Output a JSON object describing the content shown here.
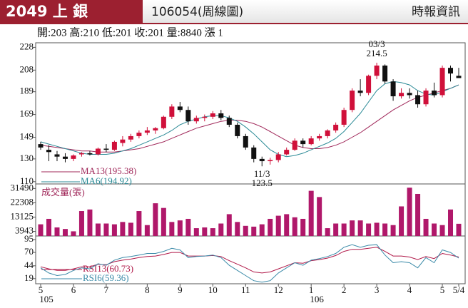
{
  "header": {
    "title": "2049 上 銀",
    "code": "106054(周線圖)",
    "source": "時報資訊",
    "info": "開:203 高:210 低:201 收:201 量:8840 漲 1"
  },
  "chart_data": [
    {
      "type": "candlestick",
      "categories": [
        "5",
        null,
        null,
        null,
        "6",
        null,
        null,
        null,
        "7",
        null,
        null,
        null,
        null,
        "8",
        null,
        null,
        null,
        "9",
        null,
        null,
        null,
        "10",
        null,
        null,
        null,
        "11",
        null,
        null,
        null,
        "12",
        null,
        null,
        null,
        "1",
        null,
        null,
        null,
        "2",
        null,
        null,
        null,
        "3",
        null,
        null,
        null,
        "4",
        null,
        null,
        null,
        "5",
        null,
        "5/4"
      ],
      "years": [
        "105",
        null,
        null,
        null,
        null,
        null,
        null,
        null,
        null,
        null,
        null,
        null,
        null,
        null,
        null,
        null,
        null,
        null,
        null,
        null,
        null,
        null,
        null,
        null,
        null,
        null,
        null,
        null,
        null,
        null,
        null,
        null,
        null,
        "106",
        null,
        null,
        null,
        null,
        null,
        null,
        null,
        null,
        null,
        null,
        null,
        null,
        null,
        null,
        null,
        null,
        null,
        null
      ],
      "open": [
        143,
        138,
        134,
        132,
        130,
        134,
        135,
        134,
        139,
        138,
        144,
        147,
        150,
        153,
        155,
        157,
        167,
        176,
        173,
        163,
        166,
        167,
        170,
        166,
        160,
        150,
        140,
        130,
        128,
        129,
        134,
        138,
        146,
        143,
        148,
        150,
        155,
        160,
        173,
        190,
        188,
        203,
        212,
        198,
        185,
        188,
        186,
        178,
        190,
        186,
        210,
        203
      ],
      "high": [
        145,
        142,
        137,
        135,
        134,
        136,
        137,
        140,
        143,
        146,
        150,
        152,
        155,
        158,
        158,
        168,
        178,
        180,
        176,
        168,
        169,
        172,
        173,
        168,
        162,
        152,
        142,
        132,
        131,
        136,
        140,
        148,
        148,
        150,
        152,
        156,
        162,
        175,
        192,
        200,
        204,
        214.5,
        213,
        200,
        192,
        192,
        190,
        192,
        197,
        212,
        212,
        210
      ],
      "low": [
        138,
        128,
        128,
        127,
        128,
        132,
        133,
        133,
        136,
        137,
        141,
        145,
        148,
        151,
        152,
        156,
        165,
        171,
        160,
        161,
        163,
        165,
        164,
        158,
        148,
        138,
        127,
        123.5,
        125,
        127,
        133,
        137,
        140,
        142,
        146,
        148,
        153,
        158,
        171,
        185,
        186,
        200,
        196,
        181,
        183,
        183,
        175,
        176,
        184,
        184,
        198,
        201
      ],
      "close": [
        140,
        136,
        132,
        130,
        133,
        135,
        134,
        139,
        138,
        145,
        147,
        150,
        153,
        155,
        157,
        167,
        176,
        173,
        163,
        166,
        167,
        170,
        166,
        160,
        150,
        140,
        130,
        128,
        129,
        134,
        138,
        146,
        143,
        148,
        150,
        155,
        160,
        173,
        190,
        188,
        203,
        212,
        198,
        185,
        188,
        186,
        178,
        190,
        186,
        210,
        205,
        201
      ],
      "up_color": "#d0103a",
      "down_color": "#111111",
      "series": [
        {
          "name": "MA13(195.38)",
          "color": "#a0285a",
          "values": [
            142,
            141,
            140,
            139,
            138,
            137,
            137,
            136,
            136,
            136,
            137,
            138,
            139,
            141,
            143,
            145,
            148,
            151,
            154,
            157,
            159,
            161,
            163,
            164,
            164,
            163,
            161,
            158,
            154,
            150,
            146,
            142,
            140,
            139,
            139,
            140,
            142,
            145,
            149,
            153,
            158,
            163,
            168,
            173,
            177,
            181,
            184,
            186,
            188,
            190,
            192,
            195
          ]
        },
        {
          "name": "MA6(194.92)",
          "color": "#2a8a96",
          "values": [
            145,
            143,
            141,
            139,
            137,
            135,
            134,
            134,
            134,
            135,
            137,
            139,
            142,
            145,
            148,
            151,
            155,
            160,
            163,
            165,
            167,
            168,
            168,
            166,
            163,
            158,
            152,
            145,
            138,
            134,
            132,
            133,
            135,
            138,
            141,
            144,
            148,
            154,
            162,
            170,
            180,
            190,
            196,
            198,
            197,
            195,
            190,
            187,
            186,
            189,
            192,
            195
          ]
        }
      ],
      "annotations": [
        {
          "label": "03/3",
          "value": 214.5
        },
        {
          "label": "11/3",
          "value": 123.5
        }
      ],
      "ylim": [
        108,
        232
      ],
      "yticks": [
        228,
        208,
        189,
        169,
        149,
        130,
        110
      ]
    },
    {
      "type": "bar",
      "label": "成交量(張)",
      "color": "#b0186a",
      "values": [
        8500,
        12000,
        6500,
        5500,
        4000,
        17000,
        18000,
        9000,
        9000,
        8500,
        10000,
        9500,
        17000,
        8000,
        22000,
        19000,
        10000,
        11000,
        12000,
        6000,
        6500,
        6000,
        9000,
        15000,
        10000,
        7500,
        7000,
        8500,
        12000,
        14000,
        15000,
        13000,
        12000,
        30000,
        26000,
        6000,
        9000,
        9000,
        11000,
        11000,
        9000,
        9500,
        9000,
        8000,
        20000,
        32000,
        28000,
        12000,
        9000,
        8000,
        18000,
        8840
      ],
      "ylim": [
        1000,
        34400
      ],
      "yticks": [
        31490,
        22308,
        13125,
        3943
      ]
    },
    {
      "type": "line",
      "series": [
        {
          "name": "RSI13(60.73)",
          "color": "#b01848",
          "values": [
            42,
            38,
            35,
            35,
            38,
            42,
            42,
            47,
            46,
            52,
            55,
            57,
            60,
            62,
            63,
            66,
            70,
            70,
            63,
            63,
            63,
            64,
            62,
            54,
            47,
            40,
            32,
            30,
            32,
            38,
            44,
            50,
            49,
            54,
            56,
            59,
            64,
            72,
            76,
            76,
            78,
            80,
            72,
            63,
            63,
            61,
            56,
            62,
            58,
            68,
            65,
            61
          ]
        },
        {
          "name": "RSI6(59.36)",
          "color": "#3a8aa8",
          "values": [
            40,
            30,
            25,
            27,
            35,
            40,
            38,
            48,
            45,
            55,
            60,
            62,
            65,
            68,
            68,
            72,
            78,
            75,
            60,
            62,
            63,
            65,
            60,
            45,
            35,
            25,
            15,
            12,
            15,
            30,
            40,
            50,
            45,
            55,
            58,
            62,
            68,
            80,
            85,
            80,
            84,
            85,
            65,
            50,
            52,
            50,
            40,
            60,
            50,
            75,
            70,
            59
          ]
        }
      ],
      "ylim": [
        9,
        102
      ],
      "yticks": [
        95,
        70,
        44,
        19
      ]
    }
  ]
}
